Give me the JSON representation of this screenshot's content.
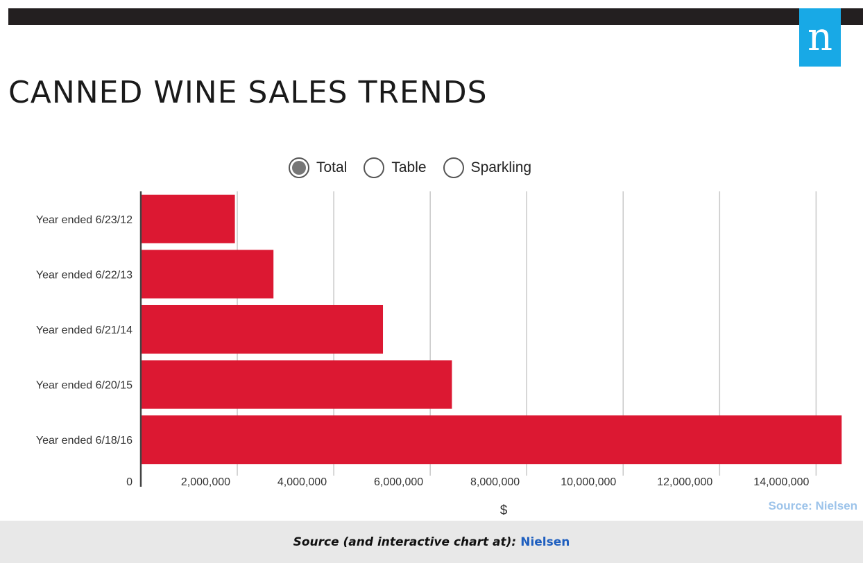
{
  "logo": {
    "text": "n",
    "color": "#18a9e6"
  },
  "filters": {
    "selected": "Total",
    "options": [
      "Total",
      "Table",
      "Sparkling"
    ]
  },
  "chart_data": {
    "type": "bar",
    "orientation": "horizontal",
    "title": "CANNED WINE SALES TRENDS",
    "categories": [
      "Year ended 6/23/12",
      "Year ended 6/22/13",
      "Year ended 6/21/14",
      "Year ended 6/20/15",
      "Year ended 6/18/16"
    ],
    "values": [
      1950000,
      2750000,
      5020000,
      6450000,
      14530000
    ],
    "xlabel": "$",
    "ylabel": "",
    "xlim": [
      0,
      14800000
    ],
    "x_ticks": [
      0,
      2000000,
      4000000,
      6000000,
      8000000,
      10000000,
      12000000,
      14000000
    ],
    "x_tick_labels": [
      "0",
      "2,000,000",
      "4,000,000",
      "6,000,000",
      "8,000,000",
      "10,000,000",
      "12,000,000",
      "14,000,000"
    ],
    "bar_color": "#dc1832",
    "grid": true,
    "source_note": "Source: Nielsen"
  },
  "footer": {
    "label": "Source (and interactive chart at):",
    "link_text": "Nielsen"
  }
}
